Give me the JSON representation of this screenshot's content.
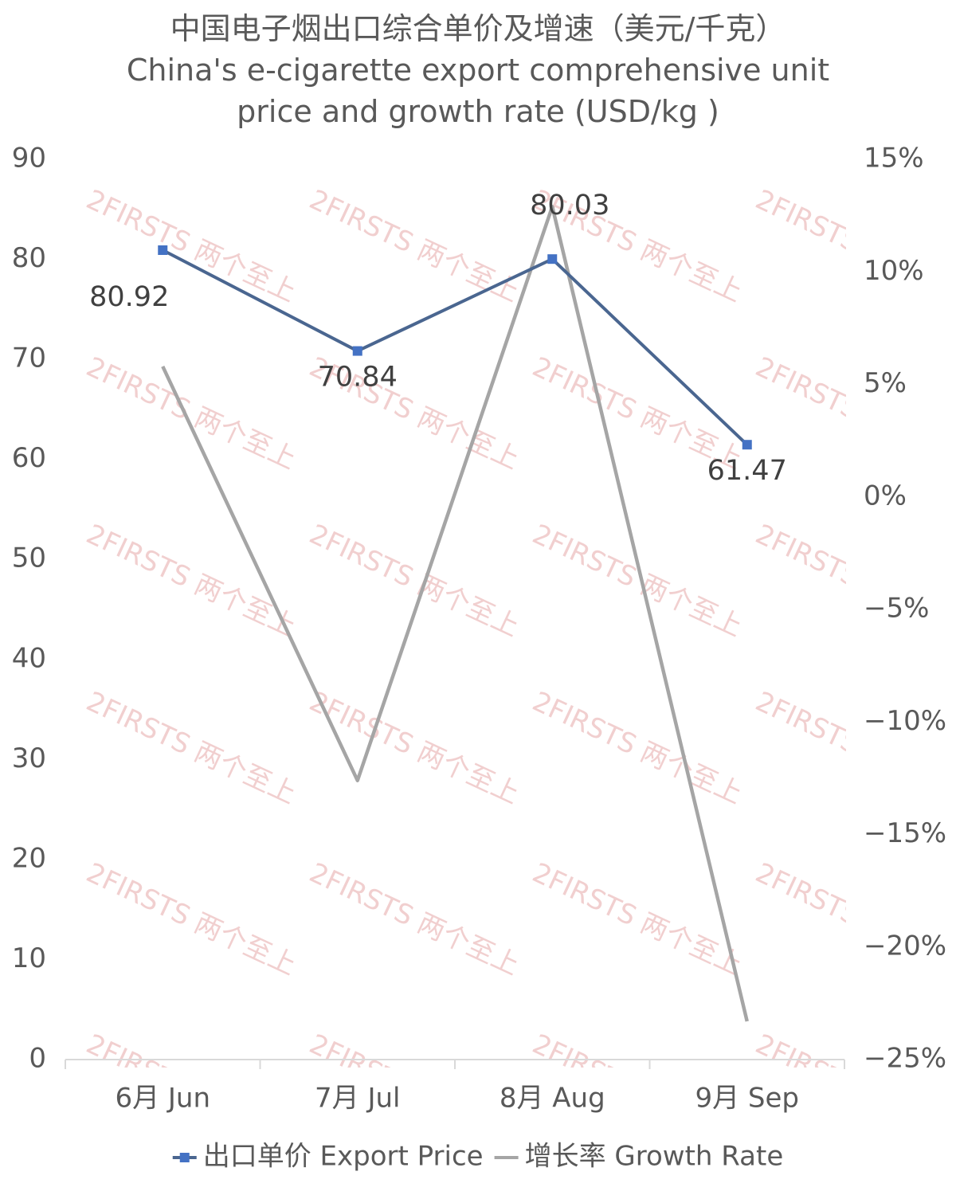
{
  "chart_data": {
    "type": "line",
    "title": "中国电子烟出口综合单价及增速（美元/千克）",
    "subtitle": "China's e-cigarette export comprehensive unit price and growth rate (USD/kg )",
    "watermark": "2FIRSTS 两个至上",
    "categories": [
      "6月 Jun",
      "7月 Jul",
      "8月 Aug",
      "9月 Sep"
    ],
    "series": [
      {
        "name": "出口单价 Export Price",
        "color": "#4a6690",
        "marker_color": "#4472c4",
        "values": [
          80.92,
          70.84,
          80.03,
          61.47
        ]
      },
      {
        "name": "增长率 Growth Rate",
        "color": "#a5a5a5",
        "axis": "y2",
        "values": [
          5.8,
          -12.6,
          12.9,
          -23.3
        ]
      }
    ],
    "ylim": [
      0,
      90
    ],
    "yticks": [
      0,
      10,
      20,
      30,
      40,
      50,
      60,
      70,
      80,
      90
    ],
    "y2lim": [
      -25,
      15
    ],
    "y2ticks": [
      {
        "value": 15,
        "label": "15%"
      },
      {
        "value": 10,
        "label": "10%"
      },
      {
        "value": 5,
        "label": "5%"
      },
      {
        "value": 0,
        "label": "0%"
      },
      {
        "value": -5,
        "label": "−5%"
      },
      {
        "value": -10,
        "label": "−10%"
      },
      {
        "value": -15,
        "label": "−15%"
      },
      {
        "value": -20,
        "label": "−20%"
      },
      {
        "value": -25,
        "label": "−25%"
      }
    ],
    "grid": false,
    "legend": "bottom"
  }
}
